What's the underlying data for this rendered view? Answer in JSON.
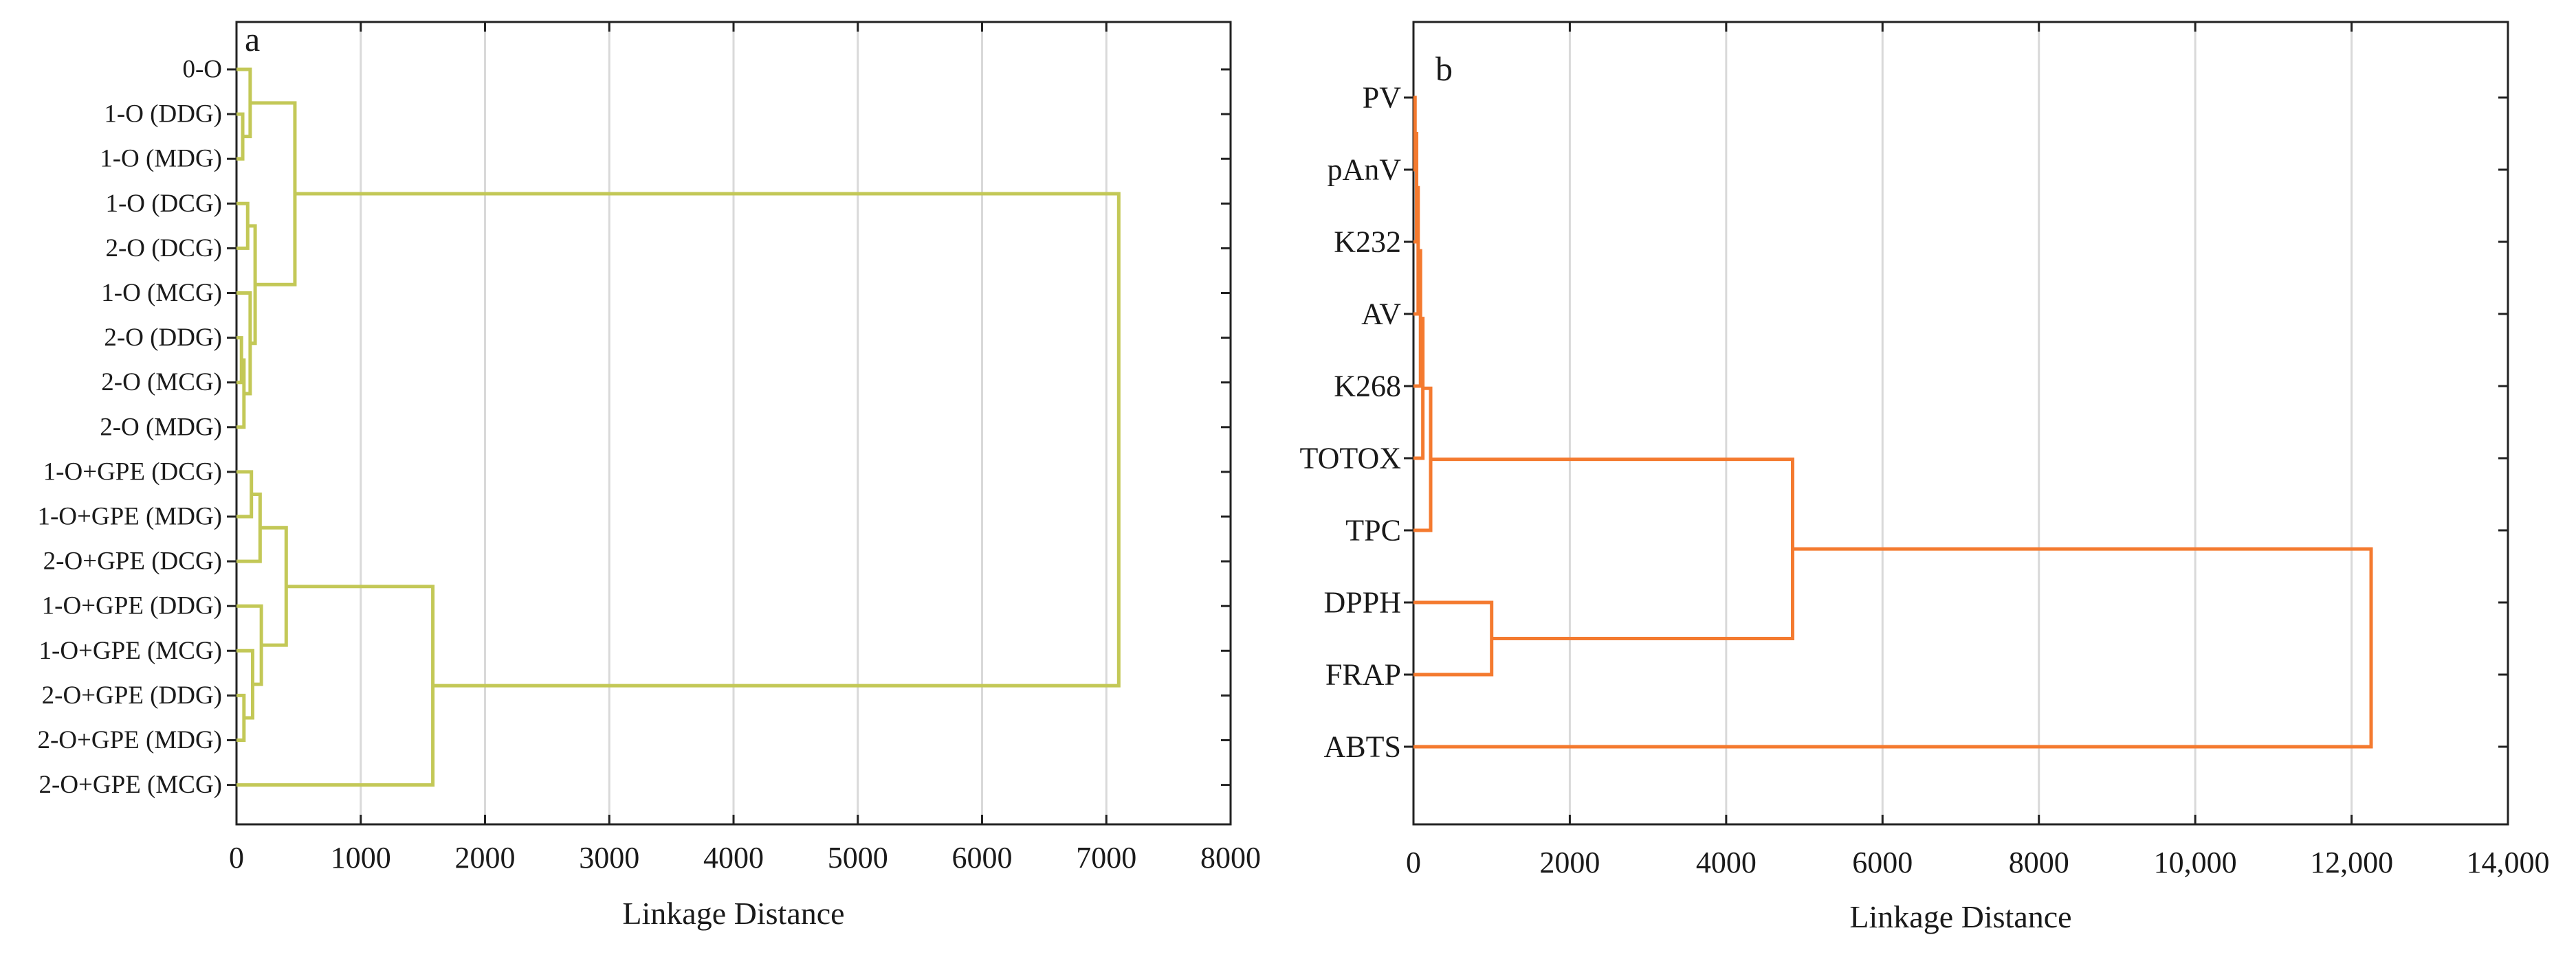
{
  "chart_data": [
    {
      "type": "dendrogram",
      "panel_label": "a",
      "xlabel": "Linkage Distance",
      "xlim": [
        0,
        8000
      ],
      "x_ticks": [
        0,
        1000,
        2000,
        3000,
        4000,
        5000,
        6000,
        7000,
        8000
      ],
      "x_tick_labels": [
        "0",
        "1000",
        "2000",
        "3000",
        "4000",
        "5000",
        "6000",
        "7000",
        "8000"
      ],
      "grid": true,
      "color": "#c3c857",
      "leaves": [
        "0-O",
        "1-O (DDG)",
        "1-O (MDG)",
        "1-O (DCG)",
        "2-O (DCG)",
        "1-O (MCG)",
        "2-O (DDG)",
        "2-O (MCG)",
        "2-O (MDG)",
        "1-O+GPE (DCG)",
        "1-O+GPE (MDG)",
        "2-O+GPE (DCG)",
        "1-O+GPE (DDG)",
        "1-O+GPE (MCG)",
        "2-O+GPE (DDG)",
        "2-O+GPE (MDG)",
        "2-O+GPE (MCG)"
      ],
      "merges": [
        [
          1,
          2,
          50
        ],
        [
          6,
          7,
          40
        ],
        [
          8,
          18,
          60
        ],
        [
          5,
          19,
          110
        ],
        [
          3,
          4,
          90
        ],
        [
          21,
          20,
          150
        ],
        [
          0,
          17,
          110
        ],
        [
          23,
          22,
          470
        ],
        [
          9,
          10,
          120
        ],
        [
          25,
          11,
          190
        ],
        [
          14,
          15,
          60
        ],
        [
          27,
          13,
          130
        ],
        [
          12,
          28,
          200
        ],
        [
          26,
          29,
          400
        ],
        [
          30,
          16,
          1580
        ],
        [
          24,
          31,
          7100
        ]
      ]
    },
    {
      "type": "dendrogram",
      "panel_label": "b",
      "xlabel": "Linkage Distance",
      "xlim": [
        0,
        14000
      ],
      "x_ticks": [
        0,
        2000,
        4000,
        6000,
        8000,
        10000,
        12000,
        14000
      ],
      "x_tick_labels": [
        "0",
        "2000",
        "4000",
        "6000",
        "8000",
        "10,000",
        "12,000",
        "14,000"
      ],
      "grid": true,
      "color": "#f47a2f",
      "leaves": [
        "PV",
        "pAnV",
        "K232",
        "AV",
        "K268",
        "TOTOX",
        "TPC",
        "DPPH",
        "FRAP",
        "ABTS"
      ],
      "merges": [
        [
          0,
          1,
          20
        ],
        [
          10,
          2,
          40
        ],
        [
          11,
          3,
          60
        ],
        [
          12,
          4,
          90
        ],
        [
          13,
          5,
          120
        ],
        [
          14,
          6,
          220
        ],
        [
          7,
          8,
          1000
        ],
        [
          15,
          16,
          4850
        ],
        [
          17,
          9,
          12250
        ]
      ]
    }
  ]
}
